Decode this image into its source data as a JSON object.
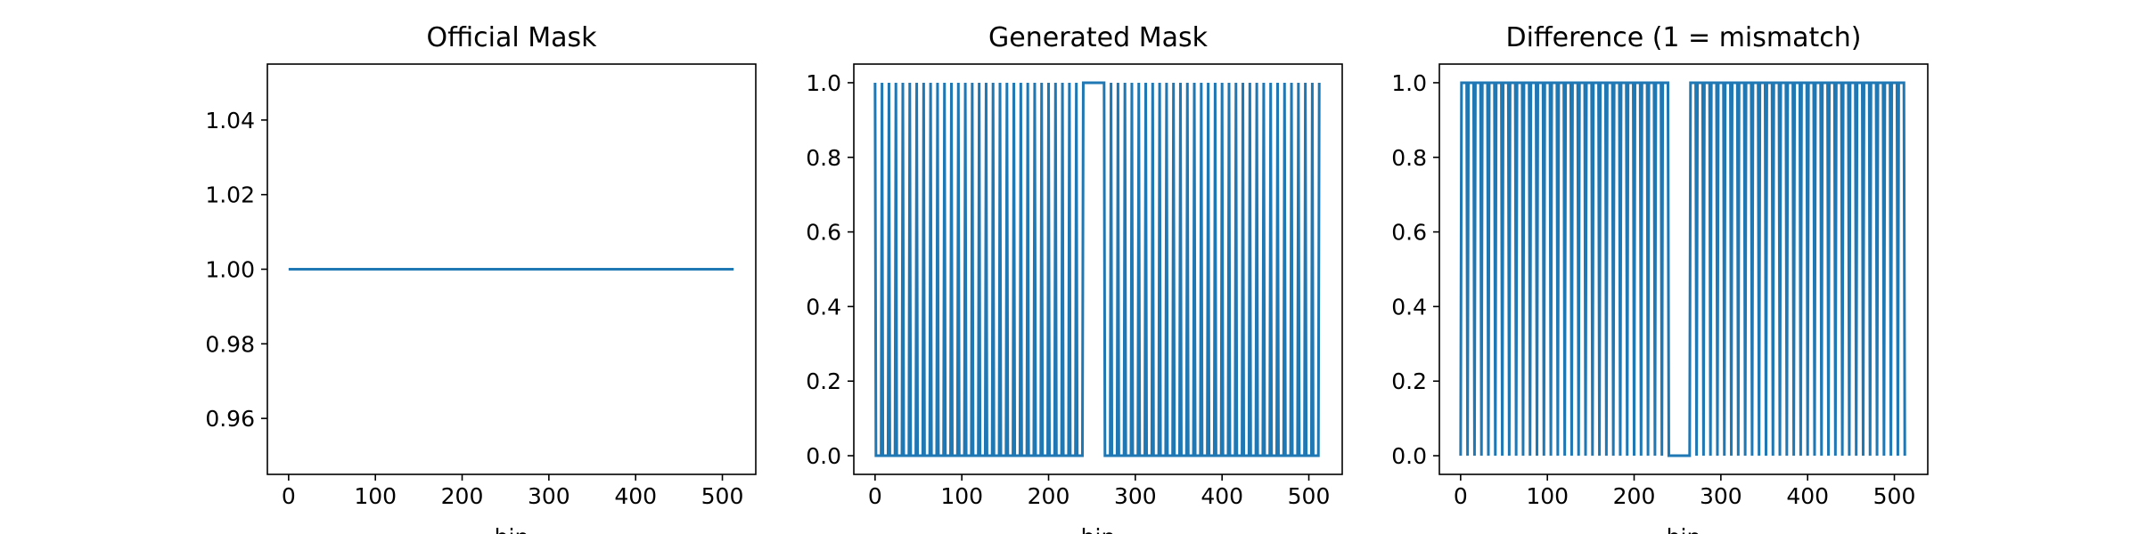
{
  "chart_data": [
    {
      "type": "line",
      "title": "Official Mask",
      "xlabel": "bin",
      "ylabel": "",
      "xlim": [
        -24.5,
        538.5
      ],
      "ylim": [
        0.945,
        1.055
      ],
      "xticks": [
        0,
        100,
        200,
        300,
        400,
        500
      ],
      "xtick_labels": [
        "0",
        "100",
        "200",
        "300",
        "400",
        "500"
      ],
      "yticks": [
        0.96,
        0.98,
        1.0,
        1.02,
        1.04
      ],
      "ytick_labels": [
        "0.96",
        "0.98",
        "1.00",
        "1.02",
        "1.04"
      ],
      "grid": false,
      "series": [
        {
          "color": "#1f77b4",
          "x": [
            0,
            513
          ],
          "y": [
            1,
            1
          ]
        }
      ]
    },
    {
      "type": "line",
      "title": "Generated Mask",
      "xlabel": "bin",
      "ylabel": "",
      "xlim": [
        -24.5,
        538.5
      ],
      "ylim": [
        -0.05,
        1.05
      ],
      "xticks": [
        0,
        100,
        200,
        300,
        400,
        500
      ],
      "xtick_labels": [
        "0",
        "100",
        "200",
        "300",
        "400",
        "500"
      ],
      "yticks": [
        0.0,
        0.2,
        0.4,
        0.6,
        0.8,
        1.0
      ],
      "ytick_labels": [
        "0.0",
        "0.2",
        "0.4",
        "0.6",
        "0.8",
        "1.0"
      ],
      "grid": false,
      "pattern": {
        "description": "alternating 0/1 mask, 1 at every 8th bin, constant 1 from 240 to 264",
        "period": 8,
        "spike_value": 1,
        "base_value": 0,
        "plateau": {
          "from": 240,
          "to": 264,
          "value": 1
        },
        "x_range": [
          0,
          512
        ]
      },
      "series": [
        {
          "color": "#1f77b4"
        }
      ]
    },
    {
      "type": "line",
      "title": "Difference (1 = mismatch)",
      "xlabel": "bin",
      "ylabel": "",
      "xlim": [
        -24.5,
        538.5
      ],
      "ylim": [
        -0.05,
        1.05
      ],
      "xticks": [
        0,
        100,
        200,
        300,
        400,
        500
      ],
      "xtick_labels": [
        "0",
        "100",
        "200",
        "300",
        "400",
        "500"
      ],
      "yticks": [
        0.0,
        0.2,
        0.4,
        0.6,
        0.8,
        1.0
      ],
      "ytick_labels": [
        "0.0",
        "0.2",
        "0.4",
        "0.6",
        "0.8",
        "1.0"
      ],
      "grid": false,
      "pattern": {
        "description": "inverse of generated mask: 0 at every 8th bin, 1 elsewhere, constant 0 from 240 to 264",
        "period": 8,
        "spike_value": 0,
        "base_value": 1,
        "plateau": {
          "from": 240,
          "to": 264,
          "value": 0
        },
        "x_range": [
          0,
          512
        ]
      },
      "series": [
        {
          "color": "#1f77b4"
        }
      ]
    }
  ]
}
